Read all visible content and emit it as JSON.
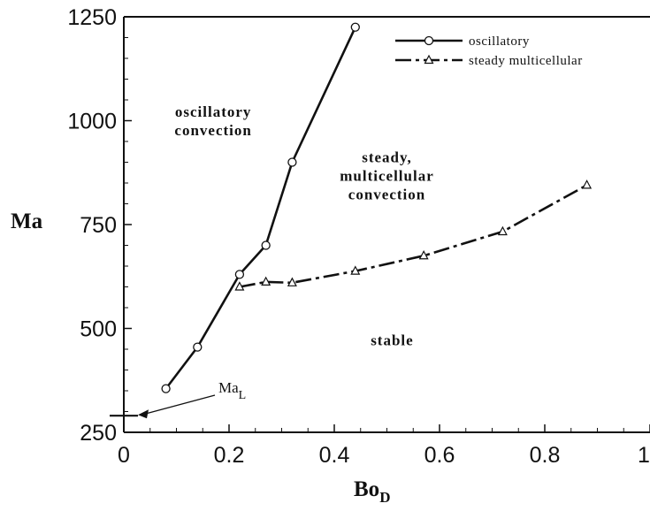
{
  "chart_data": {
    "type": "line",
    "xlabel": {
      "main": "Bo",
      "sub": "D"
    },
    "ylabel": "Ma",
    "xlim": [
      0,
      1
    ],
    "ylim": [
      250,
      1250
    ],
    "x_tick_labels": [
      "0",
      "0.2",
      "0.4",
      "0.6",
      "0.8",
      "1"
    ],
    "x_ticks": [
      0,
      0.2,
      0.4,
      0.6,
      0.8,
      1.0
    ],
    "y_tick_labels": [
      "250",
      "500",
      "750",
      "1000",
      "1250"
    ],
    "y_ticks": [
      250,
      500,
      750,
      1000,
      1250
    ],
    "grid": false,
    "legend_position": "top-right",
    "series": [
      {
        "name": "oscillatory",
        "marker": "circle",
        "line": "solid",
        "x": [
          0.08,
          0.14,
          0.22,
          0.27,
          0.32,
          0.44
        ],
        "y": [
          355,
          455,
          630,
          700,
          900,
          1225
        ]
      },
      {
        "name": "steady multicellular",
        "marker": "triangle",
        "line": "dash-dot",
        "x": [
          0.22,
          0.27,
          0.32,
          0.44,
          0.57,
          0.72,
          0.88
        ],
        "y": [
          600,
          612,
          610,
          638,
          675,
          733,
          845
        ]
      }
    ],
    "region_labels": [
      {
        "lines": [
          "oscillatory",
          "convection"
        ],
        "x": 0.17,
        "y": 1010
      },
      {
        "lines": [
          "steady,",
          "multicellular",
          "convection"
        ],
        "x": 0.5,
        "y": 900
      },
      {
        "lines": [
          "stable"
        ],
        "x": 0.51,
        "y": 460
      }
    ],
    "annotation": {
      "text_main": "Ma",
      "text_sub": "L",
      "value": 290
    }
  }
}
